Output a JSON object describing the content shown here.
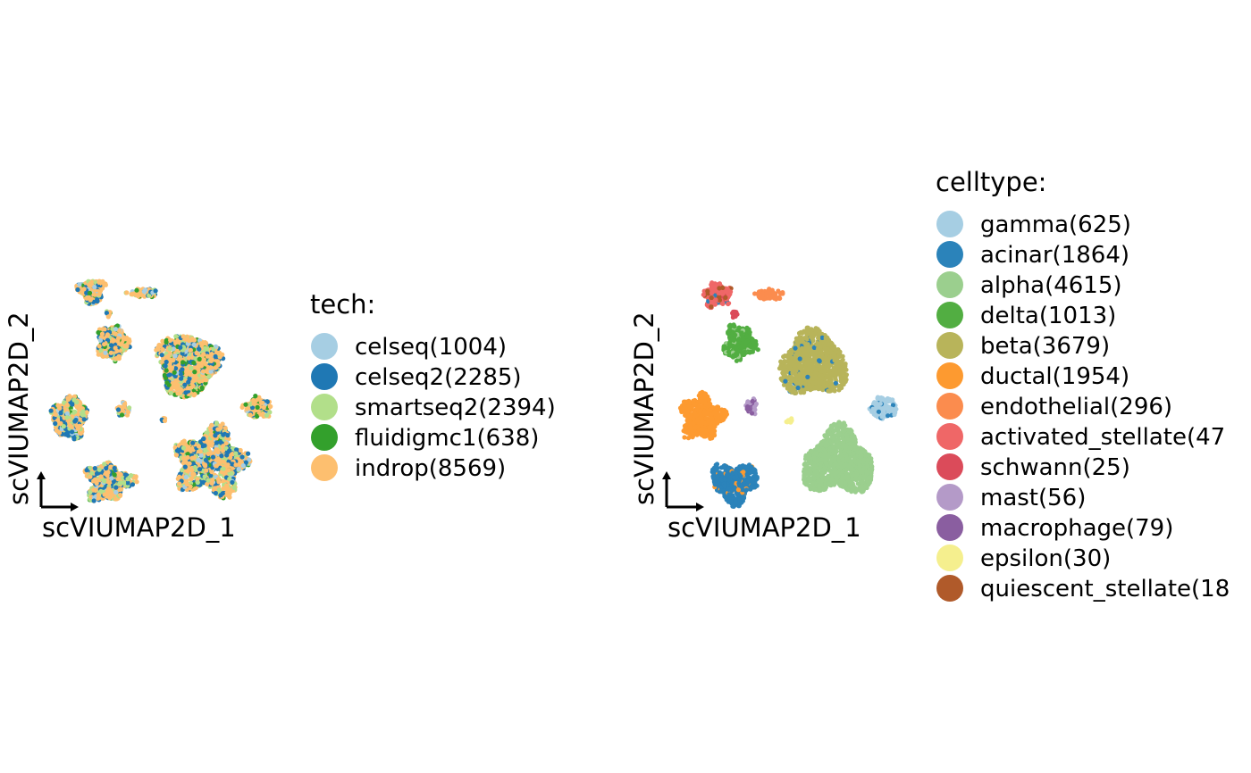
{
  "chart_data": [
    {
      "type": "scatter",
      "title": "",
      "xlabel": "scVIUMAP2D_1",
      "ylabel": "scVIUMAP2D_2",
      "axis_style": "arrow-corner",
      "grid": false,
      "legend": {
        "title": "tech:",
        "placement": "right",
        "entries": [
          {
            "label": "celseq(1004)",
            "color": "#a6cee3"
          },
          {
            "label": "celseq2(2285)",
            "color": "#1f78b4"
          },
          {
            "label": "smartseq2(2394)",
            "color": "#b2df8a"
          },
          {
            "label": "fluidigmc1(638)",
            "color": "#33a02c"
          },
          {
            "label": "indrop(8569)",
            "color": "#fdbf6f"
          }
        ]
      },
      "series": [
        {
          "name": "celseq",
          "count": 1004,
          "color": "#a6cee3"
        },
        {
          "name": "celseq2",
          "count": 2285,
          "color": "#1f78b4"
        },
        {
          "name": "smartseq2",
          "count": 2394,
          "color": "#b2df8a"
        },
        {
          "name": "fluidigmc1",
          "count": 638,
          "color": "#33a02c"
        },
        {
          "name": "indrop",
          "count": 8569,
          "color": "#fdbf6f"
        }
      ]
    },
    {
      "type": "scatter",
      "title": "",
      "xlabel": "scVIUMAP2D_1",
      "ylabel": "scVIUMAP2D_2",
      "axis_style": "arrow-corner",
      "grid": false,
      "legend": {
        "title": "celltype:",
        "placement": "right",
        "entries": [
          {
            "label": "gamma(625)",
            "color": "#a6cee3"
          },
          {
            "label": "acinar(1864)",
            "color": "#2b83ba"
          },
          {
            "label": "alpha(4615)",
            "color": "#9bcf8e"
          },
          {
            "label": "delta(1013)",
            "color": "#52ae42"
          },
          {
            "label": "beta(3679)",
            "color": "#b8b45a"
          },
          {
            "label": "ductal(1954)",
            "color": "#fd9a30"
          },
          {
            "label": "endothelial(296)",
            "color": "#fb8c4e"
          },
          {
            "label": "activated_stellate(47",
            "color": "#ef6767"
          },
          {
            "label": "schwann(25)",
            "color": "#db4b5a"
          },
          {
            "label": "mast(56)",
            "color": "#b49ac8"
          },
          {
            "label": "macrophage(79)",
            "color": "#8a5ea0"
          },
          {
            "label": "epsilon(30)",
            "color": "#f5ef8e"
          },
          {
            "label": "quiescent_stellate(18",
            "color": "#b05a2a"
          }
        ]
      },
      "series": [
        {
          "name": "gamma",
          "count": 625,
          "color": "#a6cee3"
        },
        {
          "name": "acinar",
          "count": 1864,
          "color": "#2b83ba"
        },
        {
          "name": "alpha",
          "count": 4615,
          "color": "#9bcf8e"
        },
        {
          "name": "delta",
          "count": 1013,
          "color": "#52ae42"
        },
        {
          "name": "beta",
          "count": 3679,
          "color": "#b8b45a"
        },
        {
          "name": "ductal",
          "count": 1954,
          "color": "#fd9a30"
        },
        {
          "name": "endothelial",
          "count": 296,
          "color": "#fb8c4e"
        },
        {
          "name": "activated_stellate",
          "count": 47,
          "color": "#ef6767"
        },
        {
          "name": "schwann",
          "count": 25,
          "color": "#db4b5a"
        },
        {
          "name": "mast",
          "count": 56,
          "color": "#b49ac8"
        },
        {
          "name": "macrophage",
          "count": 79,
          "color": "#8a5ea0"
        },
        {
          "name": "epsilon",
          "count": 30,
          "color": "#f5ef8e"
        },
        {
          "name": "quiescent_stellate",
          "count": 18,
          "color": "#b05a2a"
        }
      ]
    }
  ]
}
